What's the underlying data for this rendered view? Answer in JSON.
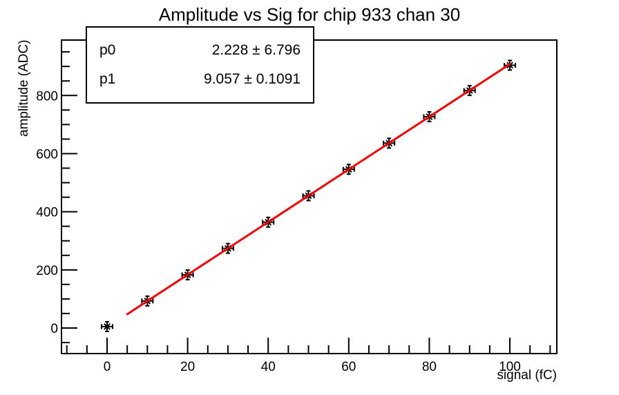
{
  "title": "Amplitude vs Sig for chip 933 chan 30",
  "stats_box": {
    "rows": [
      {
        "param": "p0",
        "value": "2.228 ± 6.796"
      },
      {
        "param": "p1",
        "value": "9.057 ± 0.1091"
      }
    ]
  },
  "chart_data": {
    "type": "scatter",
    "title": "Amplitude vs Sig for chip 933 chan 30",
    "xlabel": "signal (fC)",
    "ylabel": "amplitude (ADC)",
    "x": [
      0,
      10,
      20,
      30,
      40,
      50,
      60,
      70,
      80,
      90,
      100
    ],
    "y": [
      5,
      93,
      183,
      274,
      364,
      455,
      546,
      636,
      727,
      817,
      904
    ],
    "marker": "asterisk-with-error-bars",
    "fit": {
      "label": "linear",
      "p0": 2.228,
      "p0_err": 6.796,
      "p1": 9.057,
      "p1_err": 0.1091,
      "range": [
        5,
        100
      ]
    },
    "xlim": [
      -11.32,
      111.66
    ],
    "ylim": [
      -87.9,
      990.7
    ],
    "x_major_ticks": [
      0,
      20,
      40,
      60,
      80,
      100
    ],
    "x_minor_step": 5,
    "y_major_ticks": [
      0,
      200,
      400,
      600,
      800
    ],
    "y_minor_step": 50,
    "grid": false,
    "legend_position": "none"
  },
  "colors": {
    "background": "#ffffff",
    "axis": "#000000",
    "marker": "#000000",
    "fit_line": "#ff0000"
  }
}
